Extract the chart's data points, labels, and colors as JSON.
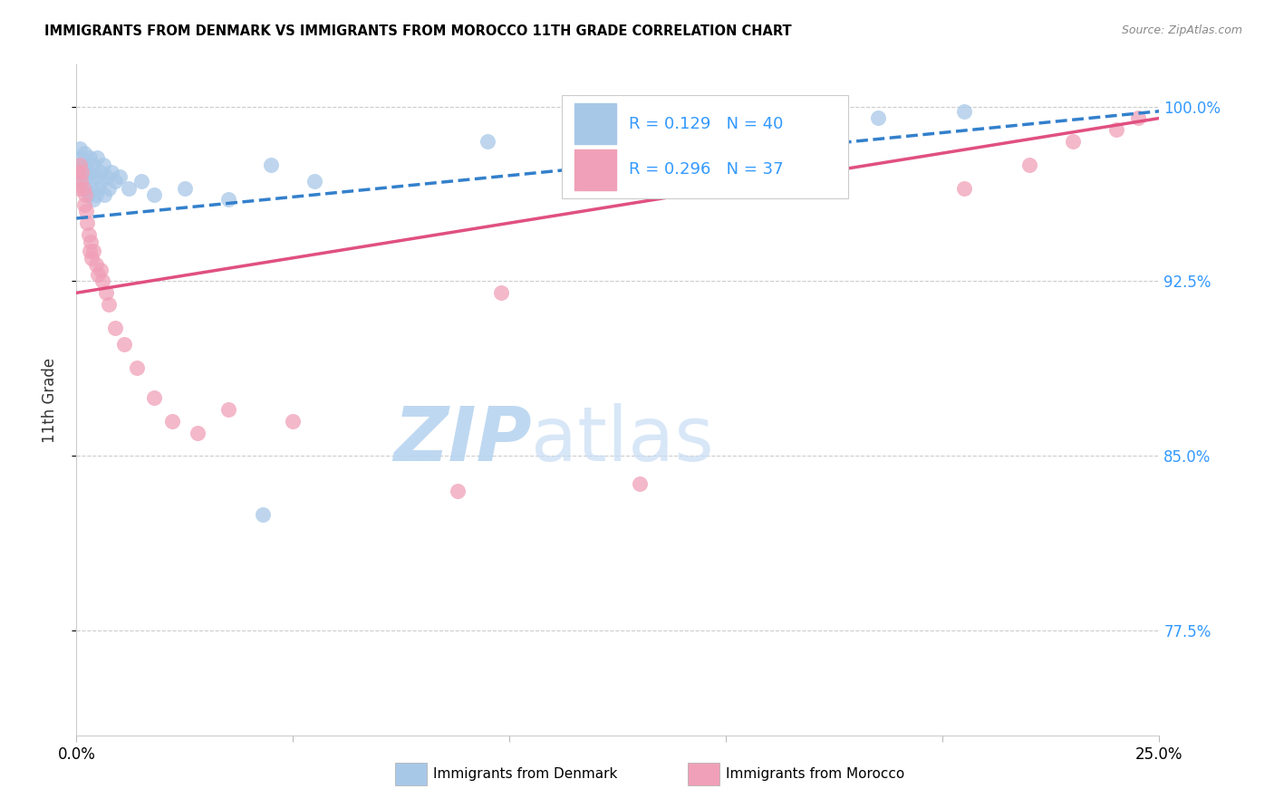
{
  "title": "IMMIGRANTS FROM DENMARK VS IMMIGRANTS FROM MOROCCO 11TH GRADE CORRELATION CHART",
  "source": "Source: ZipAtlas.com",
  "ylabel": "11th Grade",
  "y_ticks": [
    77.5,
    85.0,
    92.5,
    100.0
  ],
  "y_tick_labels": [
    "77.5%",
    "85.0%",
    "92.5%",
    "100.0%"
  ],
  "x_min": 0.0,
  "x_max": 25.0,
  "y_min": 73.0,
  "y_max": 101.8,
  "denmark_R": 0.129,
  "denmark_N": 40,
  "morocco_R": 0.296,
  "morocco_N": 37,
  "denmark_color": "#a8c8e8",
  "morocco_color": "#f0a0b8",
  "denmark_line_color": "#3380cc",
  "morocco_line_color": "#e05080",
  "denmark_x": [
    0.05,
    0.08,
    0.1,
    0.12,
    0.15,
    0.18,
    0.2,
    0.22,
    0.25,
    0.28,
    0.3,
    0.33,
    0.35,
    0.38,
    0.4,
    0.43,
    0.45,
    0.48,
    0.5,
    0.55,
    0.58,
    0.62,
    0.65,
    0.7,
    0.75,
    0.8,
    0.9,
    1.0,
    1.2,
    1.5,
    1.8,
    2.5,
    3.5,
    4.5,
    5.5,
    9.5,
    13.0,
    18.5,
    20.5,
    4.3
  ],
  "denmark_y": [
    97.5,
    98.2,
    96.8,
    97.8,
    97.2,
    98.0,
    96.5,
    97.5,
    97.0,
    96.2,
    97.8,
    96.5,
    97.2,
    96.0,
    97.5,
    97.0,
    96.2,
    97.8,
    96.5,
    97.2,
    96.8,
    97.5,
    96.2,
    97.0,
    96.5,
    97.2,
    96.8,
    97.0,
    96.5,
    96.8,
    96.2,
    96.5,
    96.0,
    97.5,
    96.8,
    98.5,
    99.2,
    99.5,
    99.8,
    82.5
  ],
  "morocco_x": [
    0.04,
    0.06,
    0.08,
    0.1,
    0.12,
    0.15,
    0.18,
    0.2,
    0.22,
    0.25,
    0.28,
    0.3,
    0.33,
    0.35,
    0.4,
    0.45,
    0.5,
    0.55,
    0.6,
    0.68,
    0.75,
    0.9,
    1.1,
    1.4,
    1.8,
    2.2,
    2.8,
    3.5,
    5.0,
    8.8,
    13.0,
    20.5,
    22.0,
    23.0,
    24.0,
    24.5,
    9.8
  ],
  "morocco_y": [
    97.2,
    96.5,
    97.5,
    96.8,
    97.2,
    96.5,
    95.8,
    96.2,
    95.5,
    95.0,
    94.5,
    93.8,
    94.2,
    93.5,
    93.8,
    93.2,
    92.8,
    93.0,
    92.5,
    92.0,
    91.5,
    90.5,
    89.8,
    88.8,
    87.5,
    86.5,
    86.0,
    87.0,
    86.5,
    83.5,
    83.8,
    96.5,
    97.5,
    98.5,
    99.0,
    99.5,
    92.0
  ],
  "dk_line_y0": 95.2,
  "dk_line_y1": 99.8,
  "mo_line_y0": 92.0,
  "mo_line_y1": 99.5
}
